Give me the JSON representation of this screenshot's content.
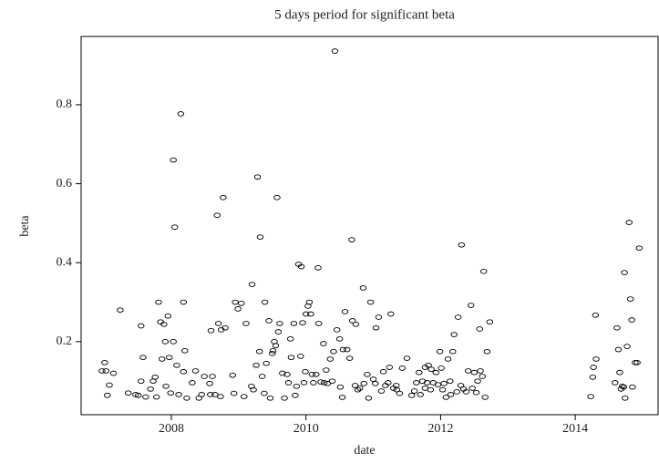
{
  "chart_data": {
    "type": "scatter",
    "title": "5 days period for significant beta",
    "x_label": "date",
    "y_label": "beta",
    "xlim": [
      2006.66,
      2015.23
    ],
    "ylim": [
      0.015,
      0.973
    ],
    "xticks": [
      2008,
      2010,
      2012,
      2014
    ],
    "yticks": [
      0.2,
      0.4,
      0.6,
      0.8
    ],
    "color": "#000000",
    "x": [
      2006.97,
      2007.01,
      2007.03,
      2007.08,
      2007.05,
      2007.14,
      2007.24,
      2007.36,
      2007.47,
      2007.51,
      2007.55,
      2007.55,
      2007.58,
      2007.62,
      2007.69,
      2007.73,
      2007.76,
      2007.78,
      2007.81,
      2007.84,
      2007.86,
      2007.89,
      2007.91,
      2007.92,
      2007.95,
      2007.97,
      2007.99,
      2008.03,
      2008.03,
      2008.05,
      2008.08,
      2008.11,
      2008.14,
      2008.18,
      2008.18,
      2008.2,
      2008.23,
      2008.31,
      2008.36,
      2008.41,
      2008.45,
      2008.49,
      2008.57,
      2008.58,
      2008.59,
      2008.61,
      2008.65,
      2008.68,
      2008.7,
      2008.73,
      2008.74,
      2008.77,
      2008.8,
      2008.91,
      2008.93,
      2008.95,
      2008.99,
      2009.04,
      2009.08,
      2009.11,
      2009.19,
      2009.2,
      2009.22,
      2009.26,
      2009.28,
      2009.31,
      2009.32,
      2009.35,
      2009.38,
      2009.39,
      2009.41,
      2009.45,
      2009.47,
      2009.5,
      2009.51,
      2009.53,
      2009.55,
      2009.57,
      2009.59,
      2009.61,
      2009.65,
      2009.68,
      2009.72,
      2009.74,
      2009.77,
      2009.78,
      2009.82,
      2009.84,
      2009.86,
      2009.89,
      2009.92,
      2009.93,
      2009.95,
      2009.97,
      2009.99,
      2010.0,
      2010.03,
      2010.05,
      2010.07,
      2010.09,
      2010.11,
      2010.15,
      2010.18,
      2010.19,
      2010.22,
      2010.26,
      2010.27,
      2010.3,
      2010.32,
      2010.36,
      2010.39,
      2010.41,
      2010.43,
      2010.46,
      2010.5,
      2010.51,
      2010.54,
      2010.55,
      2010.58,
      2010.61,
      2010.65,
      2010.68,
      2010.69,
      2010.73,
      2010.74,
      2010.77,
      2010.8,
      2010.85,
      2010.86,
      2010.91,
      2010.93,
      2010.96,
      2011.0,
      2011.03,
      2011.04,
      2011.08,
      2011.12,
      2011.15,
      2011.18,
      2011.22,
      2011.24,
      2011.26,
      2011.3,
      2011.34,
      2011.35,
      2011.39,
      2011.43,
      2011.5,
      2011.57,
      2011.61,
      2011.64,
      2011.68,
      2011.7,
      2011.73,
      2011.77,
      2011.77,
      2011.8,
      2011.82,
      2011.85,
      2011.86,
      2011.89,
      2011.93,
      2011.96,
      2011.99,
      2012.01,
      2012.03,
      2012.05,
      2012.08,
      2012.11,
      2012.14,
      2012.15,
      2012.18,
      2012.2,
      2012.24,
      2012.26,
      2012.3,
      2012.31,
      2012.34,
      2012.38,
      2012.41,
      2012.45,
      2012.47,
      2012.5,
      2012.53,
      2012.55,
      2012.58,
      2012.59,
      2012.62,
      2012.64,
      2012.66,
      2012.69,
      2012.73,
      2014.23,
      2014.26,
      2014.27,
      2014.3,
      2014.31,
      2014.59,
      2014.62,
      2014.64,
      2014.66,
      2014.68,
      2014.7,
      2014.72,
      2014.73,
      2014.74,
      2014.77,
      2014.8,
      2014.82,
      2014.84,
      2014.85,
      2014.89,
      2014.92,
      2014.95
    ],
    "values": [
      0.126,
      0.147,
      0.126,
      0.09,
      0.064,
      0.12,
      0.28,
      0.07,
      0.066,
      0.064,
      0.1,
      0.24,
      0.16,
      0.06,
      0.08,
      0.1,
      0.11,
      0.06,
      0.3,
      0.25,
      0.156,
      0.244,
      0.2,
      0.087,
      0.265,
      0.16,
      0.07,
      0.66,
      0.2,
      0.49,
      0.14,
      0.066,
      0.777,
      0.3,
      0.124,
      0.177,
      0.057,
      0.096,
      0.126,
      0.057,
      0.066,
      0.112,
      0.094,
      0.066,
      0.228,
      0.112,
      0.066,
      0.52,
      0.246,
      0.061,
      0.23,
      0.565,
      0.235,
      0.115,
      0.069,
      0.3,
      0.283,
      0.297,
      0.061,
      0.246,
      0.087,
      0.345,
      0.078,
      0.14,
      0.617,
      0.175,
      0.465,
      0.112,
      0.069,
      0.3,
      0.145,
      0.253,
      0.057,
      0.17,
      0.177,
      0.2,
      0.19,
      0.565,
      0.225,
      0.246,
      0.12,
      0.057,
      0.117,
      0.096,
      0.207,
      0.16,
      0.246,
      0.064,
      0.087,
      0.396,
      0.163,
      0.39,
      0.248,
      0.096,
      0.124,
      0.27,
      0.29,
      0.3,
      0.27,
      0.117,
      0.096,
      0.117,
      0.387,
      0.246,
      0.098,
      0.195,
      0.096,
      0.128,
      0.094,
      0.156,
      0.1,
      0.175,
      0.936,
      0.23,
      0.207,
      0.085,
      0.059,
      0.18,
      0.276,
      0.18,
      0.158,
      0.458,
      0.253,
      0.089,
      0.244,
      0.078,
      0.082,
      0.336,
      0.094,
      0.117,
      0.057,
      0.3,
      0.105,
      0.094,
      0.235,
      0.262,
      0.075,
      0.124,
      0.089,
      0.096,
      0.135,
      0.27,
      0.082,
      0.089,
      0.078,
      0.069,
      0.133,
      0.158,
      0.064,
      0.075,
      0.096,
      0.122,
      0.066,
      0.1,
      0.082,
      0.135,
      0.096,
      0.14,
      0.078,
      0.13,
      0.096,
      0.122,
      0.091,
      0.175,
      0.133,
      0.078,
      0.094,
      0.059,
      0.156,
      0.1,
      0.066,
      0.175,
      0.218,
      0.073,
      0.262,
      0.089,
      0.445,
      0.08,
      0.073,
      0.126,
      0.292,
      0.082,
      0.122,
      0.071,
      0.1,
      0.232,
      0.126,
      0.112,
      0.378,
      0.059,
      0.175,
      0.25,
      0.061,
      0.11,
      0.135,
      0.267,
      0.156,
      0.096,
      0.235,
      0.18,
      0.122,
      0.08,
      0.087,
      0.085,
      0.375,
      0.057,
      0.188,
      0.502,
      0.308,
      0.255,
      0.085,
      0.147,
      0.147,
      0.437
    ]
  }
}
